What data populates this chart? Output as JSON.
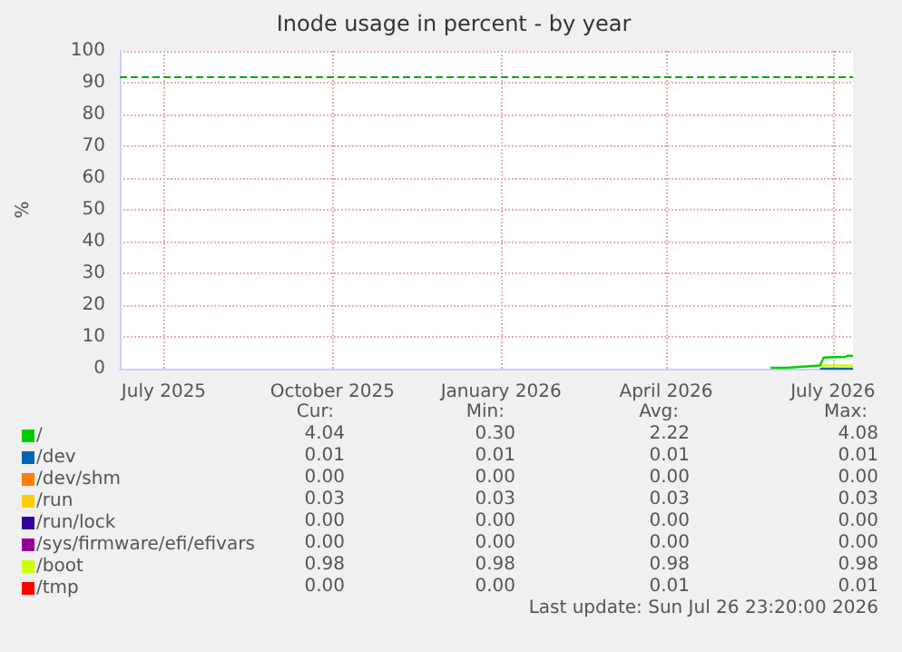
{
  "chart_data": {
    "type": "line",
    "title": "Inode usage in percent - by year",
    "ylabel": "%",
    "xlim": [
      "2025-06-21",
      "2026-07-26"
    ],
    "xticks": [
      {
        "value": "2025-07-15",
        "label": "July 2025"
      },
      {
        "value": "2025-10-15",
        "label": "October 2025"
      },
      {
        "value": "2026-01-15",
        "label": "January 2026"
      },
      {
        "value": "2026-04-15",
        "label": "April 2026"
      },
      {
        "value": "2026-07-15",
        "label": "July 2026"
      }
    ],
    "ylim": [
      0,
      100
    ],
    "yticks": [
      0,
      10,
      20,
      30,
      40,
      50,
      60,
      70,
      80,
      90,
      100
    ],
    "grid": true,
    "legend": "bottom left",
    "marker": "none",
    "line_style": "solid",
    "ref_lines": [
      {
        "axis": "y",
        "value": 92,
        "color": "#00aa00",
        "line_style": "dashed"
      }
    ],
    "series": [
      {
        "name": "/",
        "color": "#00cc00",
        "x": [
          "2026-06-11",
          "2026-06-20",
          "2026-07-08",
          "2026-07-10",
          "2026-07-22",
          "2026-07-23",
          "2026-07-26"
        ],
        "values": [
          0.3,
          0.3,
          1.0,
          3.5,
          3.7,
          4.08,
          4.04
        ]
      },
      {
        "name": "/dev",
        "color": "#0066b3",
        "x": [
          "2026-07-08",
          "2026-07-26"
        ],
        "values": [
          0.01,
          0.01
        ]
      },
      {
        "name": "/dev/shm",
        "color": "#ff8000"
      },
      {
        "name": "/run",
        "color": "#ffcc00"
      },
      {
        "name": "/run/lock",
        "color": "#330099"
      },
      {
        "name": "/sys/firmware/efi/efivars",
        "color": "#990099"
      },
      {
        "name": "/boot",
        "color": "#ccff00",
        "x": [
          "2026-07-08",
          "2026-07-26"
        ],
        "values": [
          0.98,
          0.98
        ]
      },
      {
        "name": "/tmp",
        "color": "#ff0000"
      }
    ],
    "annotations": [
      "Cur:",
      "Min:",
      "Avg:",
      "Max:",
      "4.04",
      "0.30",
      "2.22",
      "4.08",
      "0.01",
      "0.01",
      "0.01",
      "0.01",
      "0.00",
      "0.00",
      "0.00",
      "0.00",
      "0.03",
      "0.03",
      "0.03",
      "0.03",
      "0.00",
      "0.00",
      "0.00",
      "0.00",
      "0.00",
      "0.00",
      "0.00",
      "0.00",
      "0.98",
      "0.98",
      "0.98",
      "0.98",
      "0.00",
      "0.00",
      "0.01",
      "0.01",
      "Last update: Sun Jul 26 23:20:00 2026"
    ]
  }
}
